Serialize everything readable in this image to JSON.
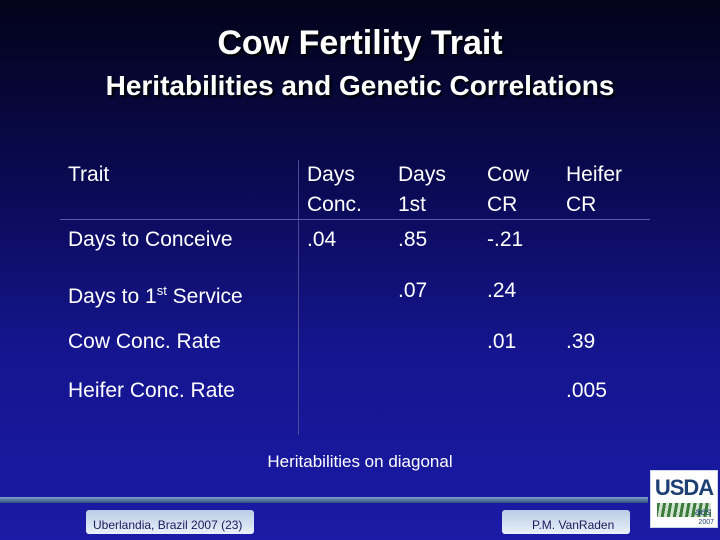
{
  "title": "Cow Fertility Trait",
  "subtitle": "Heritabilities and Genetic Correlations",
  "table": {
    "row_header": "Trait",
    "columns": [
      {
        "line1": "Days",
        "line2": "Conc."
      },
      {
        "line1": "Days",
        "line2": "1st"
      },
      {
        "line1": "Cow",
        "line2": "CR"
      },
      {
        "line1": "Heifer",
        "line2": "CR"
      }
    ],
    "rows": [
      {
        "label": "Days to Conceive",
        "cells": [
          ".04",
          ".85",
          "-.21",
          ""
        ]
      },
      {
        "label_main": "Days to 1",
        "label_sup": "st",
        "label_rest": " Service",
        "cells": [
          "",
          ".07",
          ".24",
          ""
        ]
      },
      {
        "label": "Cow Conc. Rate",
        "cells": [
          "",
          "",
          ".01",
          ".39"
        ]
      },
      {
        "label": "Heifer Conc. Rate",
        "cells": [
          "",
          "",
          "",
          ".005"
        ]
      }
    ]
  },
  "note": "Heritabilities on diagonal",
  "footer": {
    "left": "Uberlandia, Brazil 2007 (23)",
    "right": "P.M. VanRaden",
    "logo_text": "USDA",
    "logo_year": "2007",
    "corner_mark": "aes"
  }
}
